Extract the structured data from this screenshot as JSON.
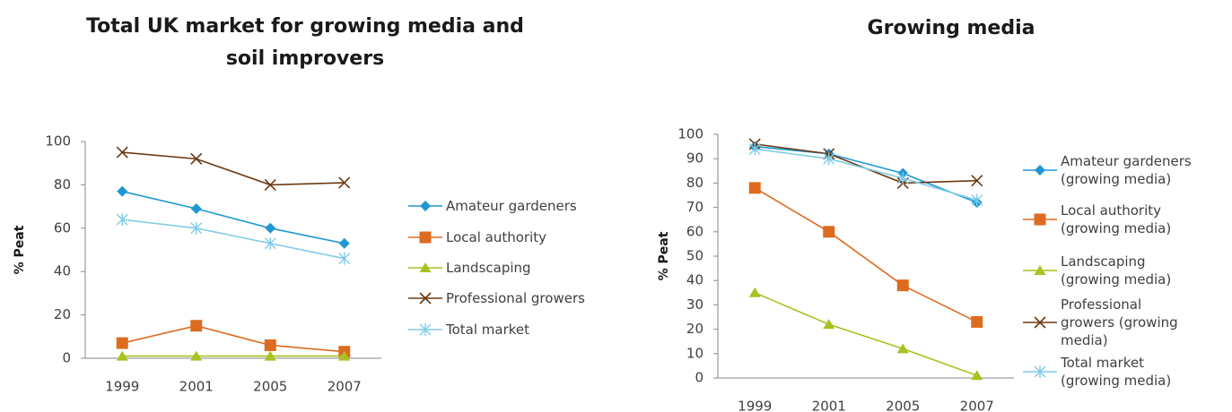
{
  "chart_data": [
    {
      "type": "line",
      "title": "Total UK market for growing media and soil improvers",
      "ylabel": "% Peat",
      "categories": [
        "1999",
        "2001",
        "2005",
        "2007"
      ],
      "ylim": [
        0,
        100
      ],
      "yticks": [
        0,
        20,
        40,
        60,
        80,
        100
      ],
      "series": [
        {
          "name": "Amateur gardeners",
          "color": "#1f97d3",
          "marker": "diamond",
          "values": [
            77,
            69,
            60,
            53
          ]
        },
        {
          "name": "Local authority",
          "color": "#dd6b1f",
          "marker": "square",
          "values": [
            7,
            15,
            6,
            3
          ]
        },
        {
          "name": "Landscaping",
          "color": "#a9c21f",
          "marker": "triangle",
          "values": [
            1,
            1,
            1,
            1
          ]
        },
        {
          "name": "Professional growers",
          "color": "#6b3a12",
          "marker": "x",
          "values": [
            95,
            92,
            80,
            81
          ]
        },
        {
          "name": "Total market",
          "color": "#7fcbe6",
          "marker": "asterisk",
          "values": [
            64,
            60,
            53,
            46
          ]
        }
      ]
    },
    {
      "type": "line",
      "title": "Growing media",
      "ylabel": "% Peat",
      "categories": [
        "1999",
        "2001",
        "2005",
        "2007"
      ],
      "ylim": [
        0,
        100
      ],
      "yticks": [
        0,
        10,
        20,
        30,
        40,
        50,
        60,
        70,
        80,
        90,
        100
      ],
      "series": [
        {
          "name": "Amateur gardeners (growing media)",
          "color": "#1f97d3",
          "marker": "diamond",
          "values": [
            95,
            92,
            84,
            72
          ]
        },
        {
          "name": "Local authority (growing media)",
          "color": "#dd6b1f",
          "marker": "square",
          "values": [
            78,
            60,
            38,
            23
          ]
        },
        {
          "name": "Landscaping (growing media)",
          "color": "#a9c21f",
          "marker": "triangle",
          "values": [
            35,
            22,
            12,
            1
          ]
        },
        {
          "name": "Professional growers (growing media)",
          "color": "#6b3a12",
          "marker": "x",
          "values": [
            96,
            92,
            80,
            81
          ]
        },
        {
          "name": "Total market (growing media)",
          "color": "#7fcbe6",
          "marker": "asterisk",
          "values": [
            94,
            90,
            82,
            73
          ]
        }
      ]
    }
  ]
}
